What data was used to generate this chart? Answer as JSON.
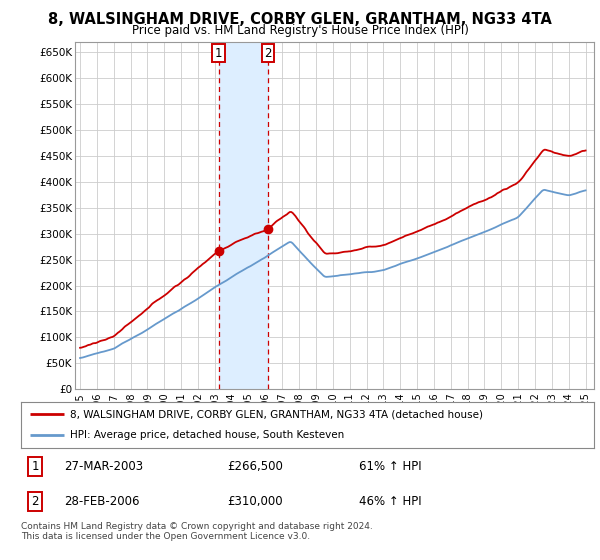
{
  "title": "8, WALSINGHAM DRIVE, CORBY GLEN, GRANTHAM, NG33 4TA",
  "subtitle": "Price paid vs. HM Land Registry's House Price Index (HPI)",
  "ylabel_ticks": [
    "£0",
    "£50K",
    "£100K",
    "£150K",
    "£200K",
    "£250K",
    "£300K",
    "£350K",
    "£400K",
    "£450K",
    "£500K",
    "£550K",
    "£600K",
    "£650K"
  ],
  "ytick_values": [
    0,
    50000,
    100000,
    150000,
    200000,
    250000,
    300000,
    350000,
    400000,
    450000,
    500000,
    550000,
    600000,
    650000
  ],
  "ylim": [
    0,
    670000
  ],
  "sale1": {
    "date_num": 2003.23,
    "price": 266500,
    "label": "1",
    "date_str": "27-MAR-2003",
    "hpi_pct": "61%"
  },
  "sale2": {
    "date_num": 2006.16,
    "price": 310000,
    "label": "2",
    "date_str": "28-FEB-2006",
    "hpi_pct": "46%"
  },
  "legend_line1": "8, WALSINGHAM DRIVE, CORBY GLEN, GRANTHAM, NG33 4TA (detached house)",
  "legend_line2": "HPI: Average price, detached house, South Kesteven",
  "footer": "Contains HM Land Registry data © Crown copyright and database right 2024.\nThis data is licensed under the Open Government Licence v3.0.",
  "price_color": "#cc0000",
  "hpi_color": "#6699cc",
  "shade_color": "#ddeeff",
  "vline_color": "#cc0000",
  "grid_color": "#cccccc",
  "background_color": "#ffffff"
}
